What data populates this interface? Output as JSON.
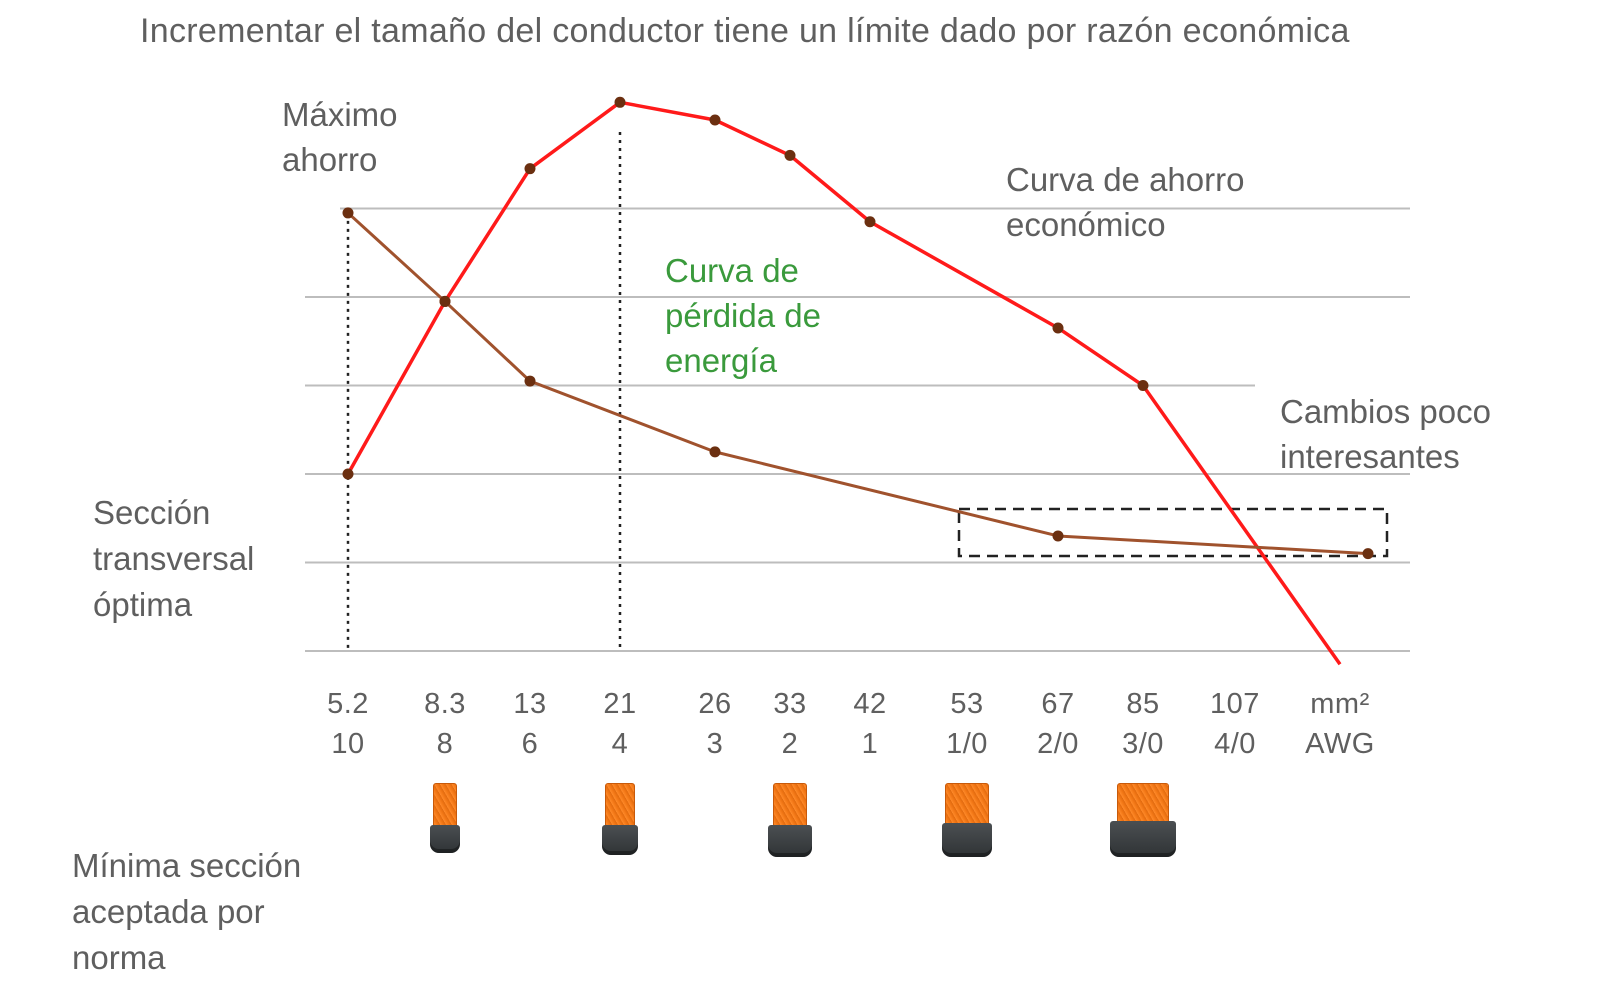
{
  "title": "Incrementar el tamaño del conductor tiene un límite dado por razón económica",
  "annotations": {
    "maximo_ahorro": [
      "Máximo",
      "ahorro"
    ],
    "curva_ahorro": [
      "Curva de ahorro",
      "económico"
    ],
    "curva_perdida": [
      "Curva de",
      "pérdida de",
      "energía"
    ],
    "cambios": [
      "Cambios poco",
      "interesantes"
    ],
    "seccion_optima": [
      "Sección",
      "transversal",
      "óptima"
    ],
    "minima_seccion": [
      "Mínima sección",
      "aceptada por",
      "norma"
    ]
  },
  "colors": {
    "savings_curve": "#ff1a1a",
    "loss_curve": "#a0522d",
    "loss_label": "#3a9a3c",
    "marker": "#6b2f10",
    "grid": "#bdbdbd",
    "text": "#5f5f5f",
    "cable_core": "#f07514",
    "cable_jacket": "#3a3e40"
  },
  "cable_icons": [
    "cable-icon",
    "cable-icon",
    "cable-icon",
    "cable-icon",
    "cable-icon"
  ],
  "chart_data": {
    "type": "line",
    "x_axis": {
      "mm2": [
        "5.2",
        "8.3",
        "13",
        "21",
        "26",
        "33",
        "42",
        "53",
        "67",
        "85",
        "107",
        "mm²"
      ],
      "awg": [
        "10",
        "8",
        "6",
        "4",
        "3",
        "2",
        "1",
        "1/0",
        "2/0",
        "3/0",
        "4/0",
        "AWG"
      ]
    },
    "ylim": [
      0,
      6.2
    ],
    "grid": true,
    "series": [
      {
        "name": "Curva de ahorro económico",
        "x": [
          5.2,
          8.3,
          13,
          21,
          26,
          33,
          42,
          67,
          85,
          107
        ],
        "y": [
          2.0,
          3.95,
          5.45,
          6.2,
          6.0,
          5.6,
          4.85,
          3.65,
          3.0,
          -0.15
        ],
        "markers": [
          true,
          true,
          true,
          true,
          true,
          true,
          true,
          true,
          true,
          false
        ]
      },
      {
        "name": "Curva de pérdida de energía",
        "x": [
          5.2,
          8.3,
          13,
          26,
          67,
          107
        ],
        "y": [
          4.95,
          3.95,
          3.05,
          2.25,
          1.3,
          1.1
        ],
        "markers": [
          true,
          true,
          true,
          true,
          true,
          true
        ]
      }
    ],
    "reference_lines": [
      {
        "label": "Sección transversal óptima",
        "x": 5.2
      },
      {
        "label": "Máximo ahorro",
        "x": 21
      }
    ],
    "highlight_box": {
      "label": "Cambios poco interesantes",
      "x_range": [
        53,
        107
      ]
    },
    "minimum_section_icons_at": [
      "8.3",
      "21",
      "33",
      "53",
      "85"
    ]
  }
}
